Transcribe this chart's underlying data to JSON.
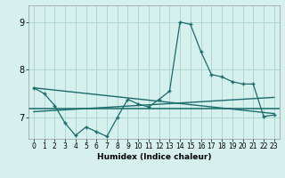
{
  "xlabel": "Humidex (Indice chaleur)",
  "bg_color": "#d6f0ee",
  "grid_color": "#aed8d4",
  "line_color": "#1a6b6b",
  "xlim": [
    -0.5,
    23.5
  ],
  "ylim": [
    6.55,
    9.35
  ],
  "yticks": [
    7,
    8,
    9
  ],
  "xticks": [
    0,
    1,
    2,
    3,
    4,
    5,
    6,
    7,
    8,
    9,
    10,
    11,
    12,
    13,
    14,
    15,
    16,
    17,
    18,
    19,
    20,
    21,
    22,
    23
  ],
  "series1_x": [
    0,
    1,
    2,
    3,
    4,
    5,
    6,
    7,
    8,
    9,
    10,
    11,
    12,
    13,
    14,
    15,
    16,
    17,
    18,
    19,
    20,
    21,
    22,
    23
  ],
  "series1_y": [
    7.62,
    7.5,
    7.25,
    6.88,
    6.62,
    6.8,
    6.7,
    6.6,
    7.0,
    7.38,
    7.28,
    7.22,
    7.38,
    7.55,
    9.0,
    8.95,
    8.38,
    7.9,
    7.85,
    7.75,
    7.7,
    7.7,
    7.02,
    7.05
  ],
  "flat_line_y": 7.18,
  "trend1_x": [
    0,
    23
  ],
  "trend1_y": [
    7.62,
    7.08
  ],
  "trend2_x": [
    0,
    23
  ],
  "trend2_y": [
    7.12,
    7.42
  ]
}
